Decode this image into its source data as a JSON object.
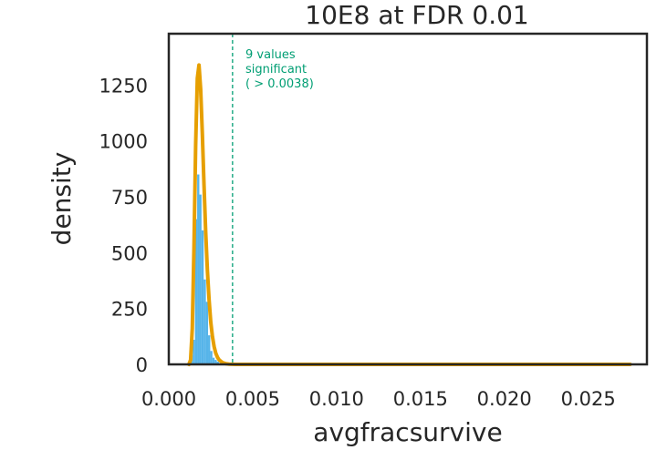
{
  "chart_data": {
    "type": "histogram",
    "title": "10E8 at FDR 0.01",
    "xlabel": "avgfracsurvive",
    "ylabel": "density",
    "xlim": [
      0.0,
      0.0285
    ],
    "ylim": [
      0,
      1480
    ],
    "xticks": [
      0.0,
      0.005,
      0.01,
      0.015,
      0.02,
      0.025
    ],
    "xtick_labels": [
      "0.000",
      "0.005",
      "0.010",
      "0.015",
      "0.020",
      "0.025"
    ],
    "yticks": [
      0,
      250,
      500,
      750,
      1000,
      1250
    ],
    "ytick_labels": [
      "0",
      "250",
      "500",
      "750",
      "1000",
      "1250"
    ],
    "grid": false,
    "histogram": {
      "color": "#56b4e9",
      "bin_width": 0.00013,
      "bins": [
        {
          "x": 0.0013,
          "density": 40
        },
        {
          "x": 0.00143,
          "density": 110
        },
        {
          "x": 0.00156,
          "density": 650
        },
        {
          "x": 0.00169,
          "density": 850
        },
        {
          "x": 0.00182,
          "density": 760
        },
        {
          "x": 0.00195,
          "density": 600
        },
        {
          "x": 0.00208,
          "density": 380
        },
        {
          "x": 0.00221,
          "density": 280
        },
        {
          "x": 0.00234,
          "density": 130
        },
        {
          "x": 0.00247,
          "density": 60
        },
        {
          "x": 0.0026,
          "density": 30
        },
        {
          "x": 0.00273,
          "density": 20
        },
        {
          "x": 0.00286,
          "density": 12
        },
        {
          "x": 0.00299,
          "density": 6
        },
        {
          "x": 0.00312,
          "density": 3
        }
      ]
    },
    "fit_curve": {
      "color": "#e69f00",
      "x": [
        0.0012,
        0.0013,
        0.0014,
        0.0015,
        0.0016,
        0.0017,
        0.0018,
        0.0019,
        0.002,
        0.0021,
        0.0022,
        0.0023,
        0.0024,
        0.0025,
        0.0026,
        0.0027,
        0.0028,
        0.0029,
        0.003,
        0.0032,
        0.0034,
        0.0036,
        0.004,
        0.005,
        0.01,
        0.015,
        0.02,
        0.025,
        0.0275
      ],
      "y": [
        0,
        20,
        160,
        520,
        980,
        1280,
        1340,
        1230,
        1030,
        800,
        590,
        420,
        290,
        190,
        125,
        80,
        50,
        32,
        20,
        8,
        3,
        1,
        0,
        0,
        0,
        0,
        0,
        0,
        0
      ]
    },
    "threshold": {
      "x": 0.0038,
      "color": "#009e73",
      "label_lines": [
        "9 values",
        "significant",
        "( > 0.0038)"
      ]
    }
  }
}
